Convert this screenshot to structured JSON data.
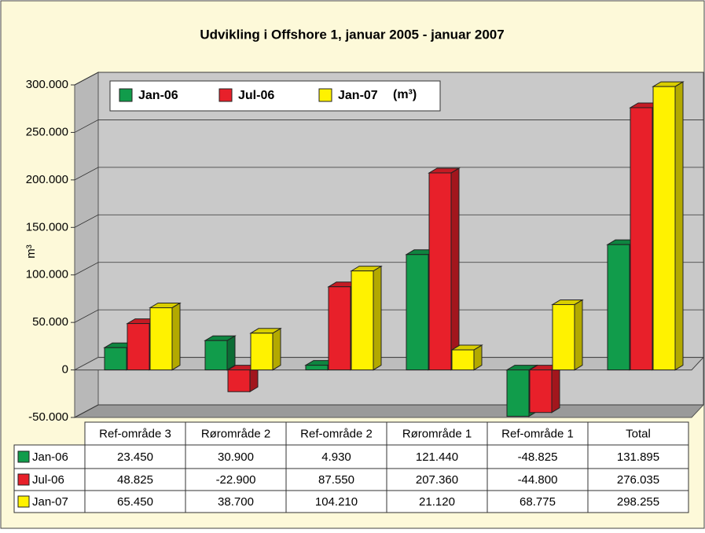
{
  "chart_data": {
    "type": "bar",
    "title": "Udvikling i Offshore 1, januar 2005 - januar 2007",
    "y_label": "m³",
    "unit_label": "(m³)",
    "categories": [
      "Ref-område 3",
      "Rørområde 2",
      "Ref-område 2",
      "Rørområde 1",
      "Ref-område 1",
      "Total"
    ],
    "series": [
      {
        "name": "Jan-06",
        "color": "#119c4b",
        "values": [
          23450,
          30900,
          4930,
          121440,
          -48825,
          131895
        ],
        "value_labels": [
          "23.450",
          "30.900",
          "4.930",
          "121.440",
          "-48.825",
          "131.895"
        ]
      },
      {
        "name": "Jul-06",
        "color": "#e8202a",
        "values": [
          48825,
          -22900,
          87550,
          207360,
          -44800,
          276035
        ],
        "value_labels": [
          "48.825",
          "-22.900",
          "87.550",
          "207.360",
          "-44.800",
          "276.035"
        ]
      },
      {
        "name": "Jan-07",
        "color": "#fff200",
        "values": [
          65450,
          38700,
          104210,
          21120,
          68775,
          298255
        ],
        "value_labels": [
          "65.450",
          "38.700",
          "104.210",
          "21.120",
          "68.775",
          "298.255"
        ]
      }
    ],
    "ylim": [
      -50000,
      300000
    ],
    "yticks": [
      {
        "value": -50000,
        "label": "-50.000"
      },
      0,
      {
        "value": 50000,
        "label": "50.000"
      },
      {
        "value": 100000,
        "label": "100.000"
      },
      {
        "value": 150000,
        "label": "150.000"
      },
      {
        "value": 200000,
        "label": "200.000"
      },
      {
        "value": 250000,
        "label": "250.000"
      },
      {
        "value": 300000,
        "label": "300.000"
      }
    ],
    "grid": true
  }
}
